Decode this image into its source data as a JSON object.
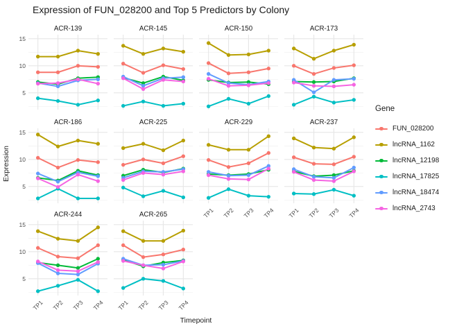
{
  "chart_data": {
    "type": "line",
    "title": "Expression of FUN_028200 and Top 5 Predictors by Colony",
    "xlabel": "Timepoint",
    "ylabel": "Expression",
    "legend_title": "Gene",
    "legend_position": "right",
    "grid": true,
    "x": [
      "TP1",
      "TP2",
      "TP3",
      "TP4"
    ],
    "yticks": [
      5,
      10,
      15
    ],
    "yticks_minor": [
      2.5,
      7.5,
      12.5
    ],
    "ylim": [
      1.9,
      15.75
    ],
    "series_names": [
      "FUN_028200",
      "lncRNA_1162",
      "lncRNA_12198",
      "lncRNA_17825",
      "lncRNA_18474",
      "lncRNA_2743"
    ],
    "colors": {
      "FUN_028200": "#F8766D",
      "lncRNA_1162": "#B79F00",
      "lncRNA_12198": "#00BA38",
      "lncRNA_17825": "#00BFC4",
      "lncRNA_18474": "#619CFF",
      "lncRNA_2743": "#F564E2"
    },
    "facets": [
      {
        "name": "ACR-139",
        "values": {
          "FUN_028200": [
            8.8,
            8.8,
            10.0,
            9.8
          ],
          "lncRNA_1162": [
            11.7,
            11.7,
            12.8,
            12.2
          ],
          "lncRNA_12198": [
            7.0,
            6.6,
            7.7,
            7.9
          ],
          "lncRNA_17825": [
            4.0,
            3.5,
            2.8,
            3.6
          ],
          "lncRNA_18474": [
            6.8,
            6.2,
            7.3,
            7.5
          ],
          "lncRNA_2743": [
            6.7,
            6.8,
            7.5,
            6.7
          ]
        }
      },
      {
        "name": "ACR-145",
        "values": {
          "FUN_028200": [
            10.4,
            8.7,
            10.1,
            9.4
          ],
          "lncRNA_1162": [
            13.7,
            12.2,
            13.2,
            12.6
          ],
          "lncRNA_12198": [
            7.8,
            6.8,
            8.0,
            7.3
          ],
          "lncRNA_17825": [
            2.6,
            3.4,
            2.6,
            3.0
          ],
          "lncRNA_18474": [
            8.0,
            6.3,
            7.7,
            7.9
          ],
          "lncRNA_2743": [
            7.7,
            5.7,
            7.4,
            7.1
          ]
        }
      },
      {
        "name": "ACR-150",
        "values": {
          "FUN_028200": [
            10.5,
            8.6,
            8.8,
            9.5
          ],
          "lncRNA_1162": [
            14.2,
            12.0,
            12.1,
            12.8
          ],
          "lncRNA_12198": [
            7.4,
            6.9,
            7.0,
            6.6
          ],
          "lncRNA_17825": [
            2.5,
            3.9,
            3.0,
            4.4
          ],
          "lncRNA_18474": [
            8.5,
            6.8,
            6.5,
            7.1
          ],
          "lncRNA_2743": [
            7.6,
            6.3,
            6.4,
            6.8
          ]
        }
      },
      {
        "name": "ACR-173",
        "values": {
          "FUN_028200": [
            10.0,
            8.5,
            9.6,
            10.1
          ],
          "lncRNA_1162": [
            13.2,
            11.3,
            12.8,
            13.9
          ],
          "lncRNA_12198": [
            7.1,
            7.0,
            7.1,
            7.7
          ],
          "lncRNA_17825": [
            2.8,
            4.3,
            3.2,
            3.7
          ],
          "lncRNA_18474": [
            7.4,
            5.1,
            7.4,
            7.6
          ],
          "lncRNA_2743": [
            6.9,
            6.3,
            6.2,
            6.5
          ]
        }
      },
      {
        "name": "ACR-186",
        "values": {
          "FUN_028200": [
            10.3,
            8.5,
            9.9,
            9.5
          ],
          "lncRNA_1162": [
            14.6,
            12.4,
            13.5,
            12.9
          ],
          "lncRNA_12198": [
            6.6,
            6.1,
            7.9,
            7.1
          ],
          "lncRNA_17825": [
            2.8,
            4.6,
            2.8,
            2.8
          ],
          "lncRNA_18474": [
            7.4,
            5.9,
            7.6,
            6.9
          ],
          "lncRNA_2743": [
            6.5,
            4.9,
            7.2,
            6.0
          ]
        }
      },
      {
        "name": "ACR-225",
        "values": {
          "FUN_028200": [
            9.0,
            10.0,
            9.3,
            10.6
          ],
          "lncRNA_1162": [
            12.1,
            12.9,
            11.7,
            13.5
          ],
          "lncRNA_12198": [
            7.0,
            8.1,
            7.6,
            8.3
          ],
          "lncRNA_17825": [
            4.8,
            3.2,
            4.2,
            3.0
          ],
          "lncRNA_18474": [
            6.6,
            7.8,
            7.7,
            8.2
          ],
          "lncRNA_2743": [
            6.2,
            7.5,
            7.2,
            7.8
          ]
        }
      },
      {
        "name": "ACR-229",
        "values": {
          "FUN_028200": [
            9.9,
            8.6,
            9.3,
            11.2
          ],
          "lncRNA_1162": [
            12.7,
            11.8,
            11.8,
            14.3
          ],
          "lncRNA_12198": [
            7.3,
            7.1,
            7.3,
            8.1
          ],
          "lncRNA_17825": [
            2.9,
            4.5,
            3.3,
            3.1
          ],
          "lncRNA_18474": [
            7.7,
            7.0,
            7.1,
            8.8
          ],
          "lncRNA_2743": [
            7.1,
            6.4,
            6.3,
            8.3
          ]
        }
      },
      {
        "name": "ACR-237",
        "values": {
          "FUN_028200": [
            10.4,
            9.2,
            9.1,
            10.5
          ],
          "lncRNA_1162": [
            13.9,
            12.2,
            12.0,
            14.1
          ],
          "lncRNA_12198": [
            7.8,
            6.9,
            7.1,
            7.9
          ],
          "lncRNA_17825": [
            3.7,
            3.6,
            4.4,
            3.3
          ],
          "lncRNA_18474": [
            8.2,
            6.8,
            6.6,
            8.5
          ],
          "lncRNA_2743": [
            7.7,
            6.2,
            6.0,
            7.8
          ]
        }
      },
      {
        "name": "ACR-244",
        "values": {
          "FUN_028200": [
            10.7,
            9.1,
            8.8,
            11.2
          ],
          "lncRNA_1162": [
            13.8,
            12.4,
            12.0,
            14.5
          ],
          "lncRNA_12198": [
            8.0,
            7.5,
            7.0,
            8.7
          ],
          "lncRNA_17825": [
            2.7,
            3.7,
            4.8,
            2.7
          ],
          "lncRNA_18474": [
            7.9,
            6.0,
            5.8,
            7.8
          ],
          "lncRNA_2743": [
            8.2,
            6.6,
            6.4,
            8.1
          ]
        }
      },
      {
        "name": "ACR-265",
        "values": {
          "FUN_028200": [
            11.2,
            9.0,
            9.5,
            10.4
          ],
          "lncRNA_1162": [
            13.8,
            12.0,
            12.0,
            13.9
          ],
          "lncRNA_12198": [
            8.5,
            7.3,
            8.0,
            8.4
          ],
          "lncRNA_17825": [
            3.3,
            5.0,
            4.6,
            3.2
          ],
          "lncRNA_18474": [
            8.7,
            7.5,
            7.6,
            8.3
          ],
          "lncRNA_2743": [
            8.3,
            7.5,
            6.9,
            8.2
          ]
        }
      }
    ]
  }
}
